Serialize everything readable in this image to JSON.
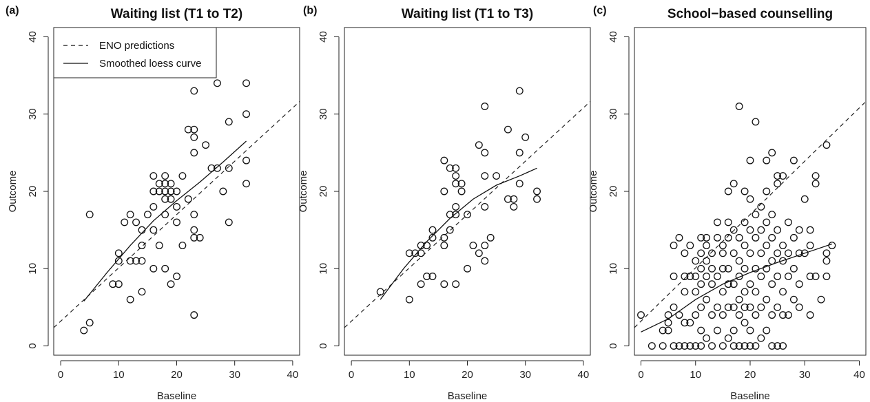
{
  "chart_data": [
    {
      "type": "scatter",
      "panel_label": "(a)",
      "title": "Waiting list (T1 to T2)",
      "xlabel": "Baseline",
      "ylabel": "Outcome",
      "xlim": [
        0,
        40
      ],
      "ylim": [
        0,
        40
      ],
      "xticks": [
        "0",
        "10",
        "20",
        "30",
        "40"
      ],
      "yticks": [
        "0",
        "10",
        "20",
        "30",
        "40"
      ],
      "legend": {
        "placement": "top-left",
        "entries": [
          {
            "label": "ENO predictions",
            "style": "dashed"
          },
          {
            "label": "Smoothed loess curve",
            "style": "solid"
          }
        ]
      },
      "eno_line": {
        "intercept": 3.2,
        "slope": 0.69
      },
      "loess_curve": [
        [
          4,
          5.8
        ],
        [
          8,
          9.5
        ],
        [
          12,
          13
        ],
        [
          16,
          16.2
        ],
        [
          20,
          18.8
        ],
        [
          24,
          21.2
        ],
        [
          28,
          23.8
        ],
        [
          32,
          26.5
        ]
      ],
      "points": [
        [
          4,
          2
        ],
        [
          5,
          3
        ],
        [
          5,
          17
        ],
        [
          9,
          8
        ],
        [
          10,
          8
        ],
        [
          10,
          11
        ],
        [
          10,
          12
        ],
        [
          11,
          16
        ],
        [
          12,
          11
        ],
        [
          12,
          17
        ],
        [
          12,
          6
        ],
        [
          13,
          11
        ],
        [
          13,
          16
        ],
        [
          14,
          11
        ],
        [
          14,
          13
        ],
        [
          14,
          15
        ],
        [
          14,
          7
        ],
        [
          15,
          17
        ],
        [
          16,
          10
        ],
        [
          16,
          15
        ],
        [
          16,
          18
        ],
        [
          16,
          20
        ],
        [
          16,
          22
        ],
        [
          17,
          13
        ],
        [
          17,
          20
        ],
        [
          17,
          21
        ],
        [
          18,
          10
        ],
        [
          18,
          17
        ],
        [
          18,
          19
        ],
        [
          18,
          20
        ],
        [
          18,
          21
        ],
        [
          18,
          22
        ],
        [
          19,
          8
        ],
        [
          19,
          19
        ],
        [
          19,
          20
        ],
        [
          19,
          21
        ],
        [
          20,
          9
        ],
        [
          20,
          16
        ],
        [
          20,
          18
        ],
        [
          20,
          20
        ],
        [
          21,
          13
        ],
        [
          21,
          22
        ],
        [
          22,
          19
        ],
        [
          22,
          28
        ],
        [
          23,
          4
        ],
        [
          23,
          14
        ],
        [
          23,
          15
        ],
        [
          23,
          17
        ],
        [
          23,
          25
        ],
        [
          23,
          27
        ],
        [
          23,
          28
        ],
        [
          23,
          33
        ],
        [
          24,
          14
        ],
        [
          25,
          26
        ],
        [
          26,
          23
        ],
        [
          27,
          23
        ],
        [
          27,
          34
        ],
        [
          28,
          20
        ],
        [
          29,
          16
        ],
        [
          29,
          23
        ],
        [
          29,
          29
        ],
        [
          32,
          21
        ],
        [
          32,
          24
        ],
        [
          32,
          30
        ],
        [
          32,
          34
        ]
      ]
    },
    {
      "type": "scatter",
      "panel_label": "(b)",
      "title": "Waiting list (T1 to T3)",
      "xlabel": "Baseline",
      "ylabel": "Outcome",
      "xlim": [
        0,
        40
      ],
      "ylim": [
        0,
        40
      ],
      "xticks": [
        "0",
        "10",
        "20",
        "30",
        "40"
      ],
      "yticks": [
        "0",
        "10",
        "20",
        "30",
        "40"
      ],
      "eno_line": {
        "intercept": 3.2,
        "slope": 0.69
      },
      "loess_curve": [
        [
          5,
          6
        ],
        [
          9,
          10
        ],
        [
          13,
          13.5
        ],
        [
          17,
          16.5
        ],
        [
          21,
          19
        ],
        [
          25,
          20.8
        ],
        [
          29,
          22
        ],
        [
          32,
          23
        ]
      ],
      "points": [
        [
          5,
          7
        ],
        [
          10,
          6
        ],
        [
          10,
          12
        ],
        [
          11,
          12
        ],
        [
          12,
          8
        ],
        [
          12,
          12
        ],
        [
          12,
          13
        ],
        [
          13,
          9
        ],
        [
          13,
          13
        ],
        [
          14,
          9
        ],
        [
          14,
          14
        ],
        [
          14,
          15
        ],
        [
          16,
          8
        ],
        [
          16,
          13
        ],
        [
          16,
          14
        ],
        [
          16,
          20
        ],
        [
          16,
          24
        ],
        [
          17,
          15
        ],
        [
          17,
          17
        ],
        [
          17,
          23
        ],
        [
          18,
          8
        ],
        [
          18,
          17
        ],
        [
          18,
          18
        ],
        [
          18,
          21
        ],
        [
          18,
          22
        ],
        [
          18,
          23
        ],
        [
          19,
          20
        ],
        [
          19,
          21
        ],
        [
          20,
          10
        ],
        [
          20,
          17
        ],
        [
          21,
          13
        ],
        [
          22,
          12
        ],
        [
          22,
          26
        ],
        [
          23,
          11
        ],
        [
          23,
          13
        ],
        [
          23,
          18
        ],
        [
          23,
          22
        ],
        [
          23,
          25
        ],
        [
          23,
          31
        ],
        [
          24,
          14
        ],
        [
          25,
          22
        ],
        [
          27,
          19
        ],
        [
          27,
          28
        ],
        [
          28,
          18
        ],
        [
          28,
          19
        ],
        [
          29,
          21
        ],
        [
          29,
          25
        ],
        [
          29,
          33
        ],
        [
          30,
          27
        ],
        [
          32,
          19
        ],
        [
          32,
          20
        ]
      ]
    },
    {
      "type": "scatter",
      "panel_label": "(c)",
      "title": "School−based counselling",
      "xlabel": "Baseline",
      "ylabel": "Outcome",
      "xlim": [
        0,
        40
      ],
      "ylim": [
        0,
        40
      ],
      "xticks": [
        "0",
        "10",
        "20",
        "30",
        "40"
      ],
      "yticks": [
        "0",
        "10",
        "20",
        "30",
        "40"
      ],
      "eno_line": {
        "intercept": 3.2,
        "slope": 0.69
      },
      "loess_curve": [
        [
          0,
          1.8
        ],
        [
          5,
          3.5
        ],
        [
          10,
          6
        ],
        [
          15,
          8
        ],
        [
          20,
          9.5
        ],
        [
          25,
          10.8
        ],
        [
          30,
          12
        ],
        [
          35,
          13.2
        ]
      ],
      "points": [
        [
          0,
          4
        ],
        [
          2,
          0
        ],
        [
          4,
          0
        ],
        [
          4,
          2
        ],
        [
          5,
          2
        ],
        [
          5,
          4
        ],
        [
          5,
          3
        ],
        [
          6,
          0
        ],
        [
          6,
          5
        ],
        [
          6,
          9
        ],
        [
          6,
          13
        ],
        [
          7,
          0
        ],
        [
          7,
          4
        ],
        [
          7,
          14
        ],
        [
          8,
          0
        ],
        [
          8,
          3
        ],
        [
          8,
          7
        ],
        [
          8,
          9
        ],
        [
          8,
          12
        ],
        [
          9,
          0
        ],
        [
          9,
          3
        ],
        [
          9,
          9
        ],
        [
          9,
          13
        ],
        [
          10,
          0
        ],
        [
          10,
          4
        ],
        [
          10,
          7
        ],
        [
          10,
          9
        ],
        [
          10,
          11
        ],
        [
          11,
          0
        ],
        [
          11,
          2
        ],
        [
          11,
          5
        ],
        [
          11,
          8
        ],
        [
          11,
          10
        ],
        [
          11,
          12
        ],
        [
          11,
          14
        ],
        [
          12,
          1
        ],
        [
          12,
          6
        ],
        [
          12,
          9
        ],
        [
          12,
          11
        ],
        [
          12,
          13
        ],
        [
          12,
          14
        ],
        [
          13,
          0
        ],
        [
          13,
          4
        ],
        [
          13,
          8
        ],
        [
          13,
          10
        ],
        [
          13,
          12
        ],
        [
          14,
          2
        ],
        [
          14,
          5
        ],
        [
          14,
          9
        ],
        [
          14,
          14
        ],
        [
          14,
          16
        ],
        [
          15,
          0
        ],
        [
          15,
          4
        ],
        [
          15,
          7
        ],
        [
          15,
          10
        ],
        [
          15,
          12
        ],
        [
          15,
          13
        ],
        [
          16,
          1
        ],
        [
          16,
          5
        ],
        [
          16,
          8
        ],
        [
          16,
          10
        ],
        [
          16,
          14
        ],
        [
          16,
          16
        ],
        [
          16,
          20
        ],
        [
          17,
          0
        ],
        [
          17,
          2
        ],
        [
          17,
          5
        ],
        [
          17,
          8
        ],
        [
          17,
          12
        ],
        [
          17,
          15
        ],
        [
          17,
          21
        ],
        [
          18,
          0
        ],
        [
          18,
          4
        ],
        [
          18,
          6
        ],
        [
          18,
          9
        ],
        [
          18,
          11
        ],
        [
          18,
          14
        ],
        [
          18,
          31
        ],
        [
          19,
          0
        ],
        [
          19,
          3
        ],
        [
          19,
          5
        ],
        [
          19,
          7
        ],
        [
          19,
          10
        ],
        [
          19,
          13
        ],
        [
          19,
          16
        ],
        [
          19,
          20
        ],
        [
          20,
          0
        ],
        [
          20,
          2
        ],
        [
          20,
          5
        ],
        [
          20,
          8
        ],
        [
          20,
          12
        ],
        [
          20,
          15
        ],
        [
          20,
          19
        ],
        [
          20,
          24
        ],
        [
          21,
          0
        ],
        [
          21,
          4
        ],
        [
          21,
          7
        ],
        [
          21,
          10
        ],
        [
          21,
          14
        ],
        [
          21,
          17
        ],
        [
          21,
          29
        ],
        [
          22,
          1
        ],
        [
          22,
          5
        ],
        [
          22,
          9
        ],
        [
          22,
          12
        ],
        [
          22,
          15
        ],
        [
          22,
          18
        ],
        [
          23,
          2
        ],
        [
          23,
          6
        ],
        [
          23,
          10
        ],
        [
          23,
          13
        ],
        [
          23,
          16
        ],
        [
          23,
          20
        ],
        [
          23,
          24
        ],
        [
          24,
          0
        ],
        [
          24,
          4
        ],
        [
          24,
          8
        ],
        [
          24,
          11
        ],
        [
          24,
          14
        ],
        [
          24,
          17
        ],
        [
          24,
          25
        ],
        [
          25,
          0
        ],
        [
          25,
          5
        ],
        [
          25,
          9
        ],
        [
          25,
          12
        ],
        [
          25,
          15
        ],
        [
          25,
          21
        ],
        [
          25,
          22
        ],
        [
          26,
          0
        ],
        [
          26,
          4
        ],
        [
          26,
          7
        ],
        [
          26,
          11
        ],
        [
          26,
          13
        ],
        [
          26,
          22
        ],
        [
          27,
          4
        ],
        [
          27,
          9
        ],
        [
          27,
          12
        ],
        [
          27,
          16
        ],
        [
          28,
          6
        ],
        [
          28,
          10
        ],
        [
          28,
          14
        ],
        [
          28,
          24
        ],
        [
          29,
          5
        ],
        [
          29,
          8
        ],
        [
          29,
          12
        ],
        [
          29,
          15
        ],
        [
          30,
          12
        ],
        [
          30,
          19
        ],
        [
          31,
          4
        ],
        [
          31,
          9
        ],
        [
          31,
          13
        ],
        [
          31,
          15
        ],
        [
          32,
          9
        ],
        [
          32,
          21
        ],
        [
          32,
          22
        ],
        [
          33,
          6
        ],
        [
          34,
          9
        ],
        [
          34,
          11
        ],
        [
          34,
          12
        ],
        [
          34,
          26
        ],
        [
          35,
          13
        ]
      ]
    }
  ]
}
